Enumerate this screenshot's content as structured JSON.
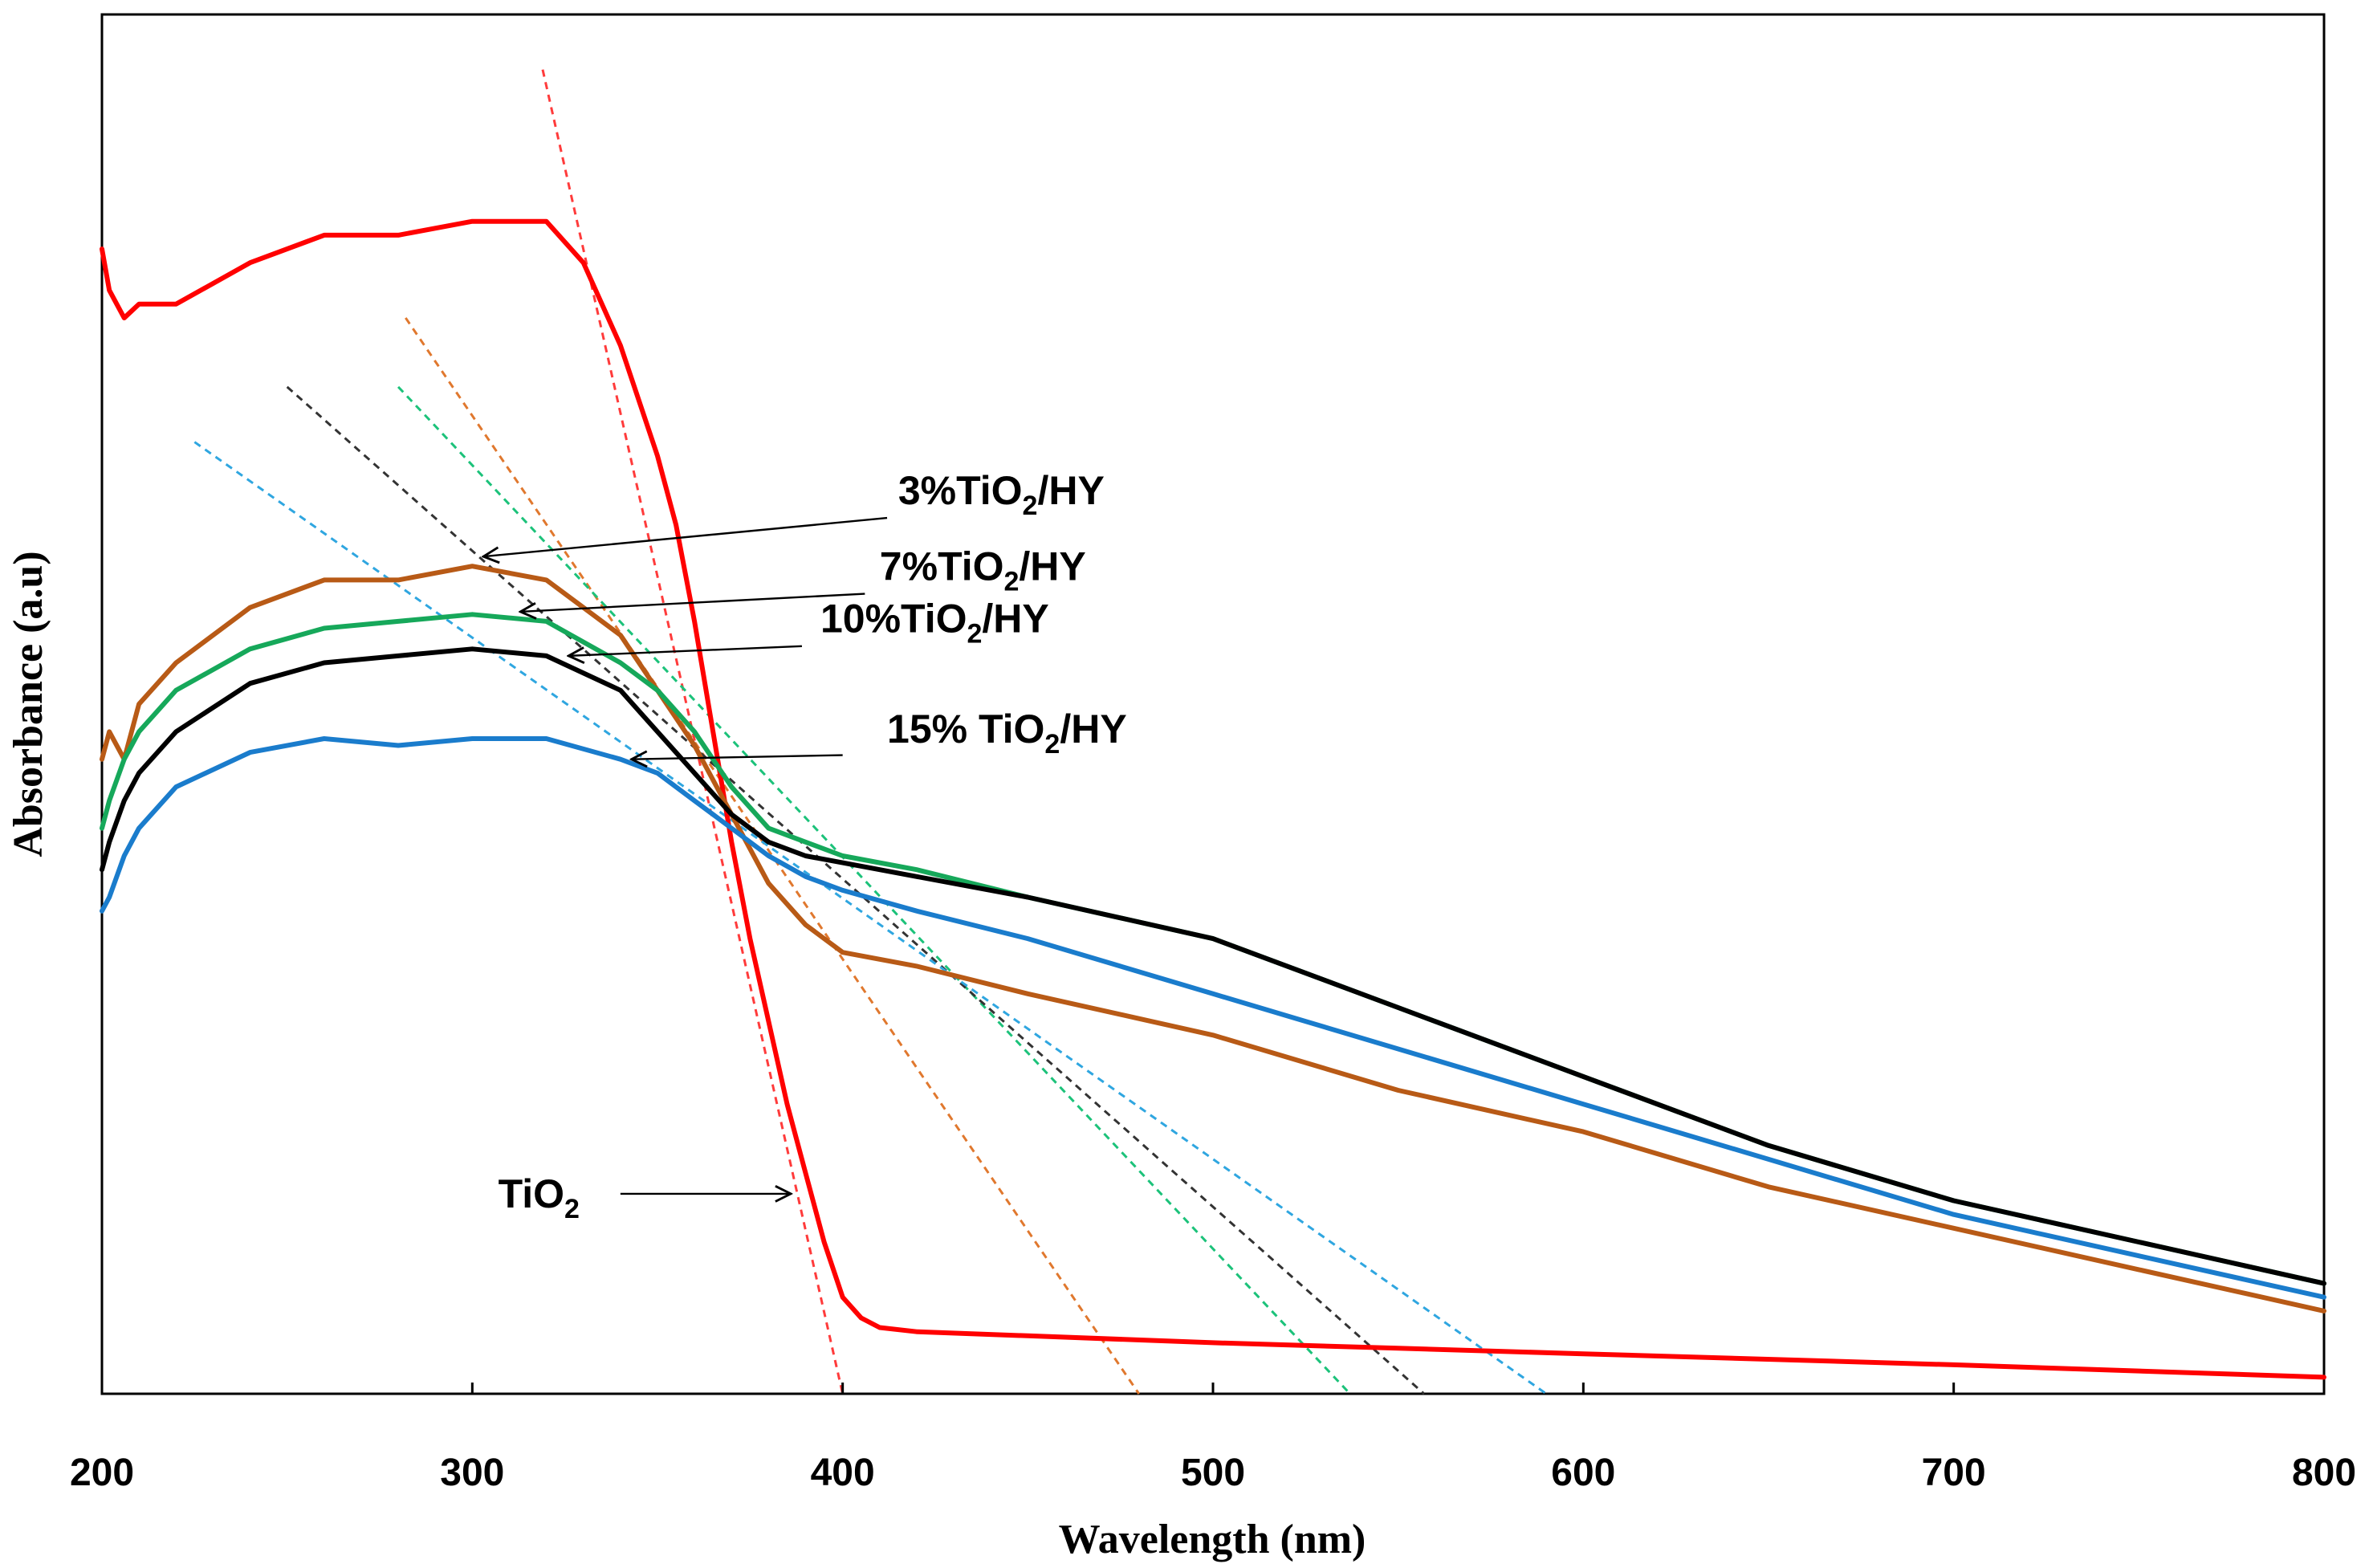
{
  "chart_data": {
    "type": "line",
    "title": "",
    "xlabel": "Wavelength (nm)",
    "ylabel": "Absorbance (a.u)",
    "xlim": [
      200,
      800
    ],
    "ylim": [
      0,
      1
    ],
    "xticks": [
      200,
      300,
      400,
      500,
      600,
      700,
      800
    ],
    "yticks": [],
    "grid": false,
    "legend": "none",
    "colors": {
      "TiO2": "#ff0000",
      "3%TiO2/HY": "#b85a16",
      "7%TiO2/HY": "#16a85a",
      "10%TiO2/HY": "#000000",
      "15% TiO2/HY": "#1a7ccc",
      "tangent_TiO2": "#ff3b3b",
      "tangent_3": "#e0782e",
      "tangent_7": "#1cc27a",
      "tangent_10": "#333333",
      "tangent_15": "#2fa6e0"
    },
    "series": [
      {
        "name": "TiO2",
        "key": "TiO2",
        "x": [
          200,
          202,
          206,
          210,
          220,
          240,
          260,
          280,
          300,
          310,
          320,
          330,
          340,
          350,
          355,
          360,
          365,
          370,
          375,
          380,
          385,
          390,
          395,
          400,
          405,
          410,
          420,
          450,
          500,
          550,
          600,
          700,
          800
        ],
        "y": [
          0.83,
          0.8,
          0.78,
          0.79,
          0.79,
          0.82,
          0.84,
          0.84,
          0.85,
          0.85,
          0.85,
          0.82,
          0.76,
          0.68,
          0.63,
          0.56,
          0.48,
          0.4,
          0.33,
          0.27,
          0.21,
          0.16,
          0.11,
          0.07,
          0.055,
          0.048,
          0.045,
          0.042,
          0.037,
          0.033,
          0.029,
          0.021,
          0.012
        ]
      },
      {
        "name": "3%TiO2/HY",
        "key": "3%TiO2/HY",
        "x": [
          200,
          202,
          206,
          210,
          220,
          240,
          260,
          280,
          300,
          320,
          330,
          340,
          350,
          360,
          370,
          380,
          390,
          400,
          420,
          450,
          500,
          550,
          600,
          650,
          700,
          750,
          800
        ],
        "y": [
          0.46,
          0.48,
          0.46,
          0.5,
          0.53,
          0.57,
          0.59,
          0.59,
          0.6,
          0.59,
          0.57,
          0.55,
          0.51,
          0.47,
          0.42,
          0.37,
          0.34,
          0.32,
          0.31,
          0.29,
          0.26,
          0.22,
          0.19,
          0.15,
          0.12,
          0.09,
          0.06
        ]
      },
      {
        "name": "7%TiO2/HY",
        "key": "7%TiO2/HY",
        "x": [
          200,
          202,
          206,
          210,
          220,
          240,
          260,
          280,
          300,
          320,
          340,
          350,
          360,
          370,
          380,
          390,
          400,
          420,
          450,
          500,
          550,
          600,
          650,
          700,
          750,
          800
        ],
        "y": [
          0.41,
          0.43,
          0.46,
          0.48,
          0.51,
          0.54,
          0.555,
          0.56,
          0.565,
          0.56,
          0.53,
          0.51,
          0.48,
          0.44,
          0.41,
          0.4,
          0.39,
          0.38,
          0.36,
          0.33,
          0.28,
          0.23,
          0.18,
          0.14,
          0.11,
          0.08
        ]
      },
      {
        "name": "10%TiO2/HY",
        "key": "10%TiO2/HY",
        "x": [
          200,
          202,
          206,
          210,
          220,
          240,
          260,
          280,
          300,
          320,
          340,
          350,
          360,
          370,
          380,
          390,
          400,
          420,
          450,
          500,
          550,
          600,
          650,
          700,
          750,
          800
        ],
        "y": [
          0.38,
          0.4,
          0.43,
          0.45,
          0.48,
          0.515,
          0.53,
          0.535,
          0.54,
          0.535,
          0.51,
          0.48,
          0.45,
          0.42,
          0.4,
          0.39,
          0.385,
          0.375,
          0.36,
          0.33,
          0.28,
          0.23,
          0.18,
          0.14,
          0.11,
          0.08
        ]
      },
      {
        "name": "15% TiO2/HY",
        "key": "15% TiO2/HY",
        "x": [
          200,
          202,
          206,
          210,
          220,
          240,
          260,
          280,
          300,
          320,
          340,
          350,
          360,
          370,
          380,
          390,
          400,
          420,
          450,
          500,
          550,
          600,
          650,
          700,
          750,
          800
        ],
        "y": [
          0.35,
          0.36,
          0.39,
          0.41,
          0.44,
          0.465,
          0.475,
          0.47,
          0.475,
          0.475,
          0.46,
          0.45,
          0.43,
          0.41,
          0.39,
          0.375,
          0.365,
          0.35,
          0.33,
          0.29,
          0.25,
          0.21,
          0.17,
          0.13,
          0.1,
          0.07
        ]
      }
    ],
    "tangents": [
      {
        "name": "TiO2 tangent",
        "key": "tangent_TiO2",
        "x": [
          319,
          400
        ],
        "y": [
          0.96,
          0.0
        ]
      },
      {
        "name": "3%TiO2/HY tangent",
        "key": "tangent_3",
        "x": [
          282,
          480
        ],
        "y": [
          0.78,
          0.0
        ]
      },
      {
        "name": "7%TiO2/HY tangent",
        "key": "tangent_7",
        "x": [
          280,
          537
        ],
        "y": [
          0.73,
          0.0
        ]
      },
      {
        "name": "10%TiO2/HY tangent",
        "key": "tangent_10",
        "x": [
          250,
          557
        ],
        "y": [
          0.73,
          0.0
        ]
      },
      {
        "name": "15% TiO2/HY tangent",
        "key": "tangent_15",
        "x": [
          225,
          590
        ],
        "y": [
          0.69,
          0.0
        ]
      }
    ],
    "annotations": [
      {
        "key": "ann3",
        "label": "3%TiO",
        "sub": "2",
        "suffix": "/HY",
        "text_x": 415,
        "text_y": 0.645,
        "arrow_from": [
          412,
          0.635
        ],
        "arrow_to": [
          303,
          0.607
        ]
      },
      {
        "key": "ann7",
        "label": "7%TiO",
        "sub": "2",
        "suffix": "/HY",
        "text_x": 410,
        "text_y": 0.59,
        "arrow_from": [
          406,
          0.58
        ],
        "arrow_to": [
          313,
          0.567
        ]
      },
      {
        "key": "ann10",
        "label": "10%TiO",
        "sub": "2",
        "suffix": "/HY",
        "text_x": 394,
        "text_y": 0.552,
        "arrow_from": [
          389,
          0.542
        ],
        "arrow_to": [
          326,
          0.535
        ]
      },
      {
        "key": "ann15",
        "label": "15% TiO",
        "sub": "2",
        "suffix": "/HY",
        "text_x": 412,
        "text_y": 0.472,
        "arrow_from": [
          400,
          0.463
        ],
        "arrow_to": [
          343,
          0.46
        ]
      },
      {
        "key": "annTiO2",
        "label": "TiO",
        "sub": "2",
        "suffix": "",
        "text_x": 307,
        "text_y": 0.135,
        "arrow_from": [
          340,
          0.145
        ],
        "arrow_to": [
          386,
          0.145
        ]
      }
    ]
  }
}
